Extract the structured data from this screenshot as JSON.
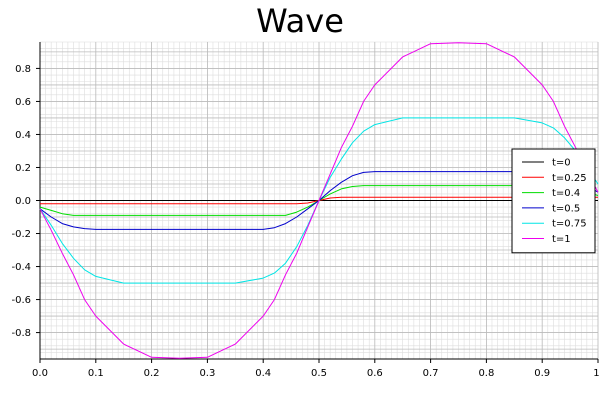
{
  "chart_data": {
    "type": "line",
    "title": "Wave",
    "xlabel": "",
    "ylabel": "",
    "xlim": [
      0,
      1
    ],
    "ylim": [
      -0.96,
      0.96
    ],
    "xticks": [
      0,
      0.1,
      0.2,
      0.3,
      0.4,
      0.5,
      0.6,
      0.7,
      0.8,
      0.9,
      1
    ],
    "xtick_labels": [
      "0.0",
      "0.1",
      "0.2",
      "0.3",
      "0.4",
      "0.5",
      "0.6",
      "0.7",
      "0.8",
      "0.9",
      "1."
    ],
    "yticks": [
      -0.8,
      -0.6,
      -0.4,
      -0.2,
      0,
      0.2,
      0.4,
      0.6,
      0.8
    ],
    "ytick_labels": [
      "-0.8",
      "-0.6",
      "-0.4",
      "-0.2",
      "0.0",
      "0.2",
      "0.4",
      "0.6",
      "0.8"
    ],
    "grid": true,
    "legend_position": "right",
    "x": [
      0,
      0.02,
      0.04,
      0.06,
      0.08,
      0.1,
      0.15,
      0.2,
      0.25,
      0.3,
      0.35,
      0.4,
      0.42,
      0.44,
      0.46,
      0.48,
      0.5,
      0.52,
      0.54,
      0.56,
      0.58,
      0.6,
      0.65,
      0.7,
      0.75,
      0.8,
      0.85,
      0.9,
      0.92,
      0.94,
      0.96,
      0.98,
      1
    ],
    "series": [
      {
        "name": "t=0",
        "color": "#000000",
        "values": [
          0,
          0,
          0,
          0,
          0,
          0,
          0,
          0,
          0,
          0,
          0,
          0,
          0,
          0,
          0,
          0,
          0,
          0,
          0,
          0,
          0,
          0,
          0,
          0,
          0,
          0,
          0,
          0,
          0,
          0,
          0,
          0,
          0
        ]
      },
      {
        "name": "t=0.25",
        "color": "#ff0000",
        "values": [
          -0.02,
          -0.02,
          -0.02,
          -0.02,
          -0.02,
          -0.02,
          -0.02,
          -0.02,
          -0.02,
          -0.02,
          -0.02,
          -0.02,
          -0.02,
          -0.02,
          -0.02,
          -0.015,
          0,
          0.015,
          0.02,
          0.02,
          0.02,
          0.02,
          0.02,
          0.02,
          0.02,
          0.02,
          0.02,
          0.02,
          0.02,
          0.02,
          0.02,
          0.02,
          0.02
        ]
      },
      {
        "name": "t=0.4",
        "color": "#00dd00",
        "values": [
          -0.04,
          -0.06,
          -0.08,
          -0.09,
          -0.09,
          -0.09,
          -0.09,
          -0.09,
          -0.09,
          -0.09,
          -0.09,
          -0.09,
          -0.09,
          -0.09,
          -0.07,
          -0.04,
          0,
          0.04,
          0.07,
          0.085,
          0.09,
          0.09,
          0.09,
          0.09,
          0.09,
          0.09,
          0.09,
          0.09,
          0.09,
          0.085,
          0.07,
          0.05,
          0.03
        ]
      },
      {
        "name": "t=0.5",
        "color": "#0000cc",
        "values": [
          -0.05,
          -0.1,
          -0.14,
          -0.16,
          -0.17,
          -0.175,
          -0.175,
          -0.175,
          -0.175,
          -0.175,
          -0.175,
          -0.175,
          -0.165,
          -0.14,
          -0.1,
          -0.05,
          0,
          0.06,
          0.11,
          0.15,
          0.17,
          0.175,
          0.175,
          0.175,
          0.175,
          0.175,
          0.175,
          0.175,
          0.17,
          0.15,
          0.12,
          0.09,
          0.05
        ]
      },
      {
        "name": "t=0.75",
        "color": "#00e5e5",
        "values": [
          -0.05,
          -0.15,
          -0.26,
          -0.35,
          -0.42,
          -0.46,
          -0.5,
          -0.5,
          -0.5,
          -0.5,
          -0.5,
          -0.47,
          -0.44,
          -0.38,
          -0.28,
          -0.15,
          0,
          0.14,
          0.25,
          0.35,
          0.42,
          0.46,
          0.5,
          0.5,
          0.5,
          0.5,
          0.5,
          0.47,
          0.44,
          0.38,
          0.3,
          0.2,
          0.1
        ]
      },
      {
        "name": "t=1",
        "color": "#ee00ee",
        "values": [
          -0.05,
          -0.18,
          -0.32,
          -0.45,
          -0.6,
          -0.7,
          -0.87,
          -0.95,
          -0.955,
          -0.95,
          -0.87,
          -0.7,
          -0.6,
          -0.45,
          -0.32,
          -0.16,
          0,
          0.16,
          0.32,
          0.45,
          0.6,
          0.7,
          0.87,
          0.95,
          0.955,
          0.95,
          0.87,
          0.7,
          0.6,
          0.45,
          0.32,
          0.18,
          0.05
        ]
      }
    ]
  }
}
